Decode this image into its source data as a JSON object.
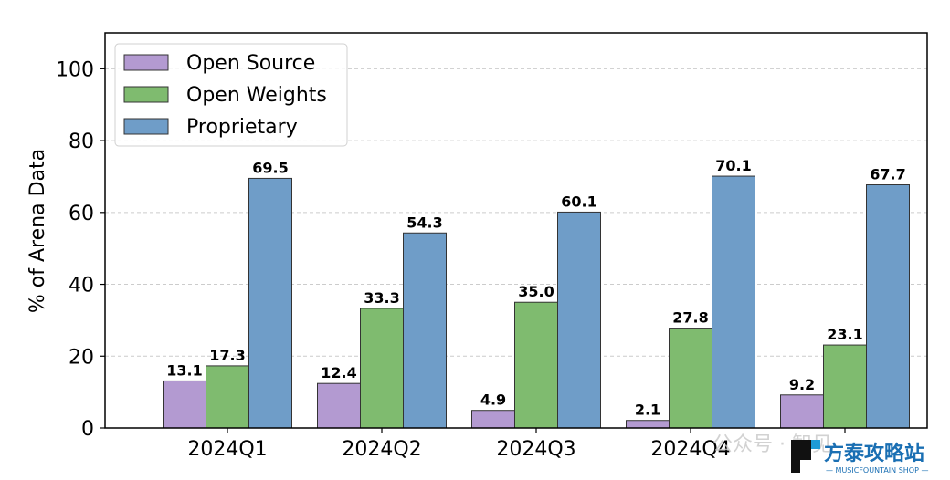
{
  "chart_data": {
    "type": "bar",
    "categories": [
      "2024Q1",
      "2024Q2",
      "2024Q3",
      "2024Q4",
      ""
    ],
    "series": [
      {
        "name": "Open Source",
        "color": "#b39ad1",
        "values": [
          13.1,
          12.4,
          4.9,
          2.1,
          9.2
        ]
      },
      {
        "name": "Open Weights",
        "color": "#7fbb6f",
        "values": [
          17.3,
          33.3,
          35.0,
          27.8,
          23.1
        ]
      },
      {
        "name": "Proprietary",
        "color": "#6f9dc8",
        "values": [
          69.5,
          54.3,
          60.1,
          70.1,
          67.7
        ]
      }
    ],
    "title": "",
    "xlabel": "",
    "ylabel": "% of Arena Data",
    "ylim": [
      0,
      110
    ],
    "yticks": [
      0,
      20,
      40,
      60,
      80,
      100
    ],
    "grid": "horizontal dashed",
    "legend_position": "top-left"
  },
  "watermark": {
    "brand": "方泰攻略站",
    "sub": "— MUSICFOUNTAIN SHOP —",
    "faint": "公众号 · 智见"
  }
}
